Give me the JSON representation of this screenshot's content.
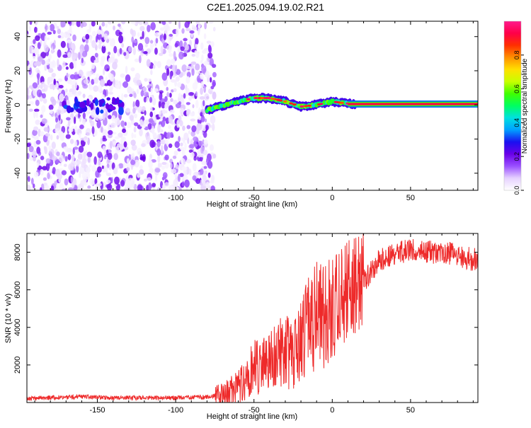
{
  "title": "C2E1.2025.094.19.02.R21",
  "colors": {
    "snr_line": "#ee2a2a",
    "axis": "#000000",
    "spectro_background": "#ffffff"
  },
  "chart_data": [
    {
      "type": "heatmap",
      "xlabel": "Height of straight line (km)",
      "ylabel": "Frequency (Hz)",
      "xlim": [
        -195,
        93
      ],
      "ylim": [
        -50,
        49
      ],
      "x_ticks": [
        -150,
        -100,
        -50,
        0,
        50
      ],
      "x_tick_labels": [
        "-150",
        "-100",
        "-50",
        "0",
        "50"
      ],
      "y_ticks": [
        -40,
        -20,
        0,
        20,
        40
      ],
      "y_tick_labels": [
        "-40",
        "-20",
        "0",
        "20",
        "40"
      ],
      "grid": false,
      "noise_region_x": [
        -195,
        -75
      ],
      "signal_track": [
        {
          "x": -80,
          "y": -3
        },
        {
          "x": -72,
          "y": -1
        },
        {
          "x": -60,
          "y": 2
        },
        {
          "x": -50,
          "y": 4
        },
        {
          "x": -40,
          "y": 4
        },
        {
          "x": -30,
          "y": 2
        },
        {
          "x": -20,
          "y": -1
        },
        {
          "x": -10,
          "y": 0
        },
        {
          "x": 0,
          "y": 2
        },
        {
          "x": 8,
          "y": 1
        },
        {
          "x": 15,
          "y": 0.5
        },
        {
          "x": 93,
          "y": 0.5
        }
      ],
      "colorbar": {
        "label": "Normalized spectral amplitude",
        "range": [
          0,
          1
        ],
        "ticks": [
          0.0,
          0.2,
          0.4,
          0.6,
          0.8
        ],
        "tick_labels": [
          "0.0",
          "0.2",
          "0.4",
          "0.6",
          "0.8"
        ],
        "colormap": [
          "#ffffff",
          "#e6d2ff",
          "#9a50ff",
          "#6a00e8",
          "#1a10f0",
          "#00a0ff",
          "#00e0e0",
          "#00ff60",
          "#40ff00",
          "#c8ff00",
          "#ffe000",
          "#ff9000",
          "#ff3000",
          "#ff0048",
          "#ff1a8c"
        ]
      }
    },
    {
      "type": "line",
      "xlabel": "Height of straight line (km)",
      "ylabel": "SNR (10 * v/v)",
      "xlim": [
        -195,
        93
      ],
      "ylim": [
        0,
        9000
      ],
      "x_ticks": [
        -150,
        -100,
        -50,
        0,
        50
      ],
      "x_tick_labels": [
        "-150",
        "-100",
        "-50",
        "0",
        "50"
      ],
      "y_ticks": [
        2000,
        4000,
        6000,
        8000
      ],
      "y_tick_labels": [
        "2000",
        "4000",
        "6000",
        "8000"
      ],
      "grid": false,
      "series": [
        {
          "x": [
            -195,
            -180,
            -160,
            -140,
            -120,
            -100,
            -80,
            -70,
            -60,
            -55,
            -50,
            -45,
            -40,
            -35,
            -30,
            -25,
            -20,
            -15,
            -10,
            -5,
            0,
            5,
            10,
            15,
            20,
            25,
            30,
            40,
            50,
            60,
            70,
            80,
            90,
            93
          ],
          "values": [
            200,
            250,
            300,
            250,
            250,
            250,
            300,
            400,
            900,
            1300,
            2000,
            1800,
            2400,
            2600,
            2700,
            2600,
            3500,
            4000,
            4700,
            4500,
            5000,
            5600,
            6200,
            6000,
            6700,
            7300,
            7900,
            8300,
            8400,
            8350,
            8300,
            8200,
            7900,
            8000
          ]
        }
      ]
    }
  ]
}
